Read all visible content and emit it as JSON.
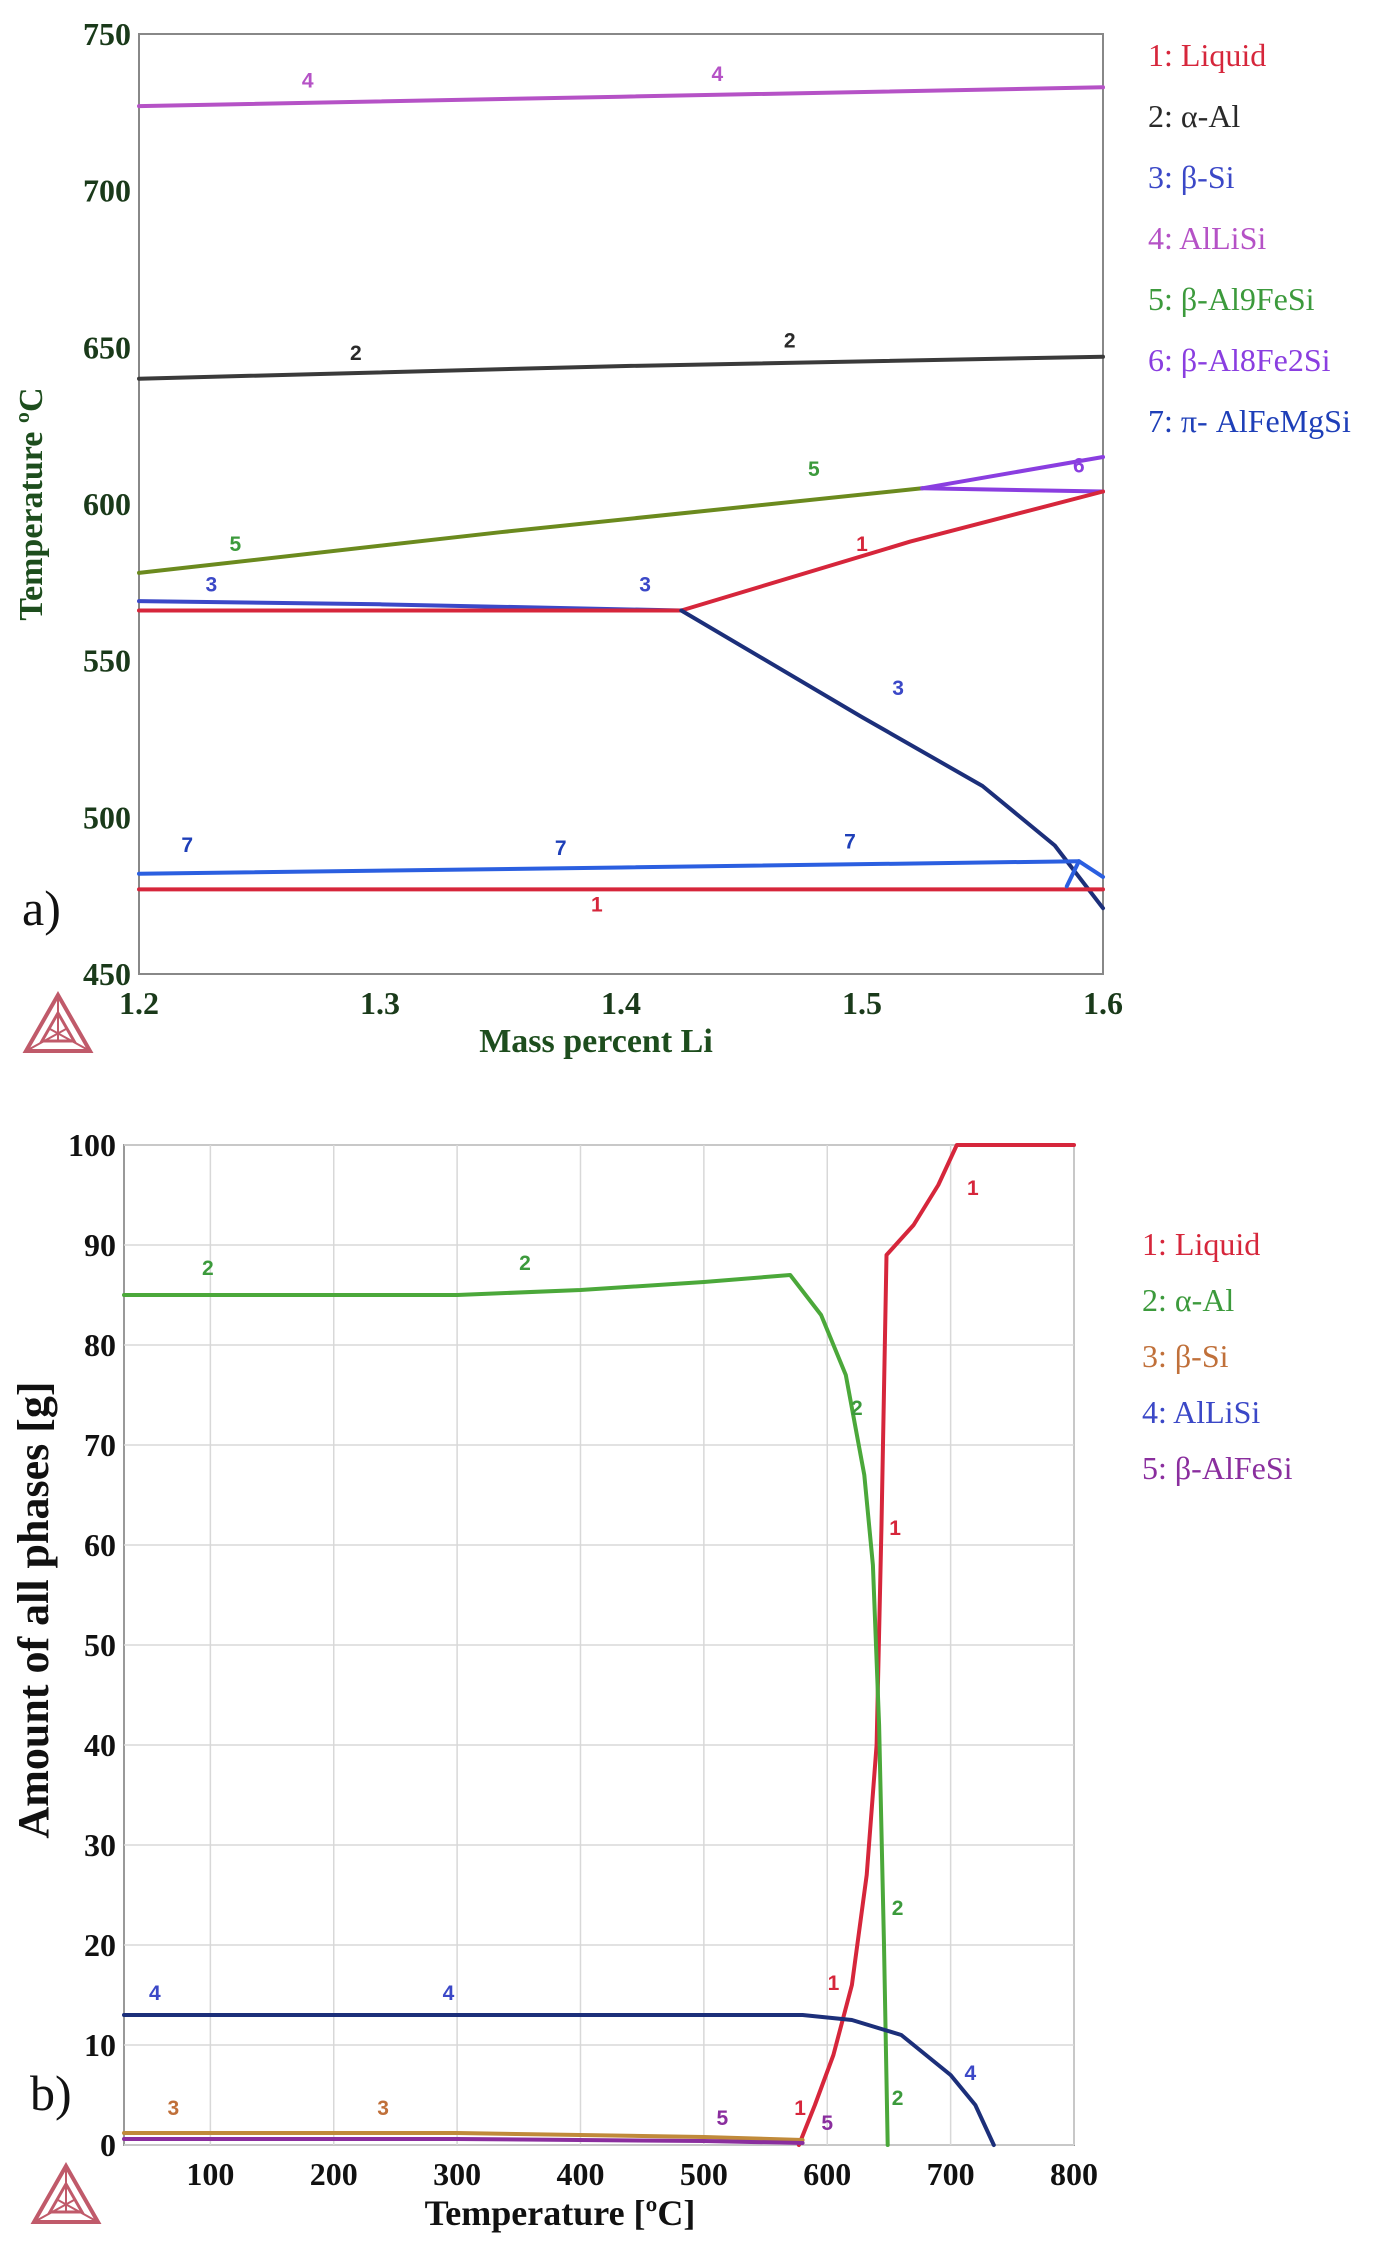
{
  "chart_data": [
    {
      "type": "line",
      "panel_label": "a)",
      "xlabel": "Mass percent Li",
      "ylabel": "Temperature ºC",
      "xlim": [
        1.2,
        1.6
      ],
      "ylim": [
        450,
        750
      ],
      "x_ticks": [
        "1.2",
        "1.3",
        "1.4",
        "1.5",
        "1.6"
      ],
      "y_ticks": [
        "450",
        "500",
        "550",
        "600",
        "650",
        "700",
        "750"
      ],
      "legend": [
        {
          "text": "1: Liquid",
          "color": "#d6263b"
        },
        {
          "text": "2: α-Al",
          "color": "#2a2a2a"
        },
        {
          "text": "3: β-Si",
          "color": "#3b48c7"
        },
        {
          "text": "4: AlLiSi",
          "color": "#b552c6"
        },
        {
          "text": "5: β-Al9FeSi",
          "color": "#3c9a3c"
        },
        {
          "text": "6: β-Al8Fe2Si",
          "color": "#8a3ee0"
        },
        {
          "text": "7: π- AlFeMgSi",
          "color": "#1e3fb8"
        }
      ],
      "series": [
        {
          "name": "4",
          "color": "#b552c6",
          "points": [
            [
              1.2,
              727
            ],
            [
              1.4,
              730
            ],
            [
              1.6,
              733
            ]
          ]
        },
        {
          "name": "2",
          "color": "#3a3a3a",
          "points": [
            [
              1.2,
              640
            ],
            [
              1.4,
              644
            ],
            [
              1.6,
              647
            ]
          ]
        },
        {
          "name": "5",
          "color": "#6b8a1e",
          "points": [
            [
              1.2,
              578
            ],
            [
              1.35,
              591
            ],
            [
              1.525,
              605
            ]
          ]
        },
        {
          "name": "6",
          "color": "#8a3ee0",
          "points": [
            [
              1.525,
              605
            ],
            [
              1.6,
              615
            ]
          ]
        },
        {
          "name": "6",
          "color": "#8a3ee0",
          "points": [
            [
              1.525,
              605
            ],
            [
              1.6,
              604
            ]
          ]
        },
        {
          "name": "1",
          "color": "#d6263b",
          "points": [
            [
              1.425,
              566
            ],
            [
              1.52,
              588
            ],
            [
              1.6,
              604
            ]
          ]
        },
        {
          "name": "3",
          "color": "#3b48c7",
          "points": [
            [
              1.2,
              569
            ],
            [
              1.3,
              568
            ],
            [
              1.425,
              566
            ]
          ]
        },
        {
          "name": "1",
          "color": "#d6263b",
          "points": [
            [
              1.2,
              566
            ],
            [
              1.3,
              566
            ],
            [
              1.425,
              566
            ]
          ]
        },
        {
          "name": "3",
          "color": "#1c2f7a",
          "points": [
            [
              1.425,
              566
            ],
            [
              1.5,
              532
            ],
            [
              1.55,
              510
            ],
            [
              1.58,
              491
            ],
            [
              1.6,
              471
            ]
          ]
        },
        {
          "name": "7",
          "color": "#2b5fe0",
          "points": [
            [
              1.2,
              482
            ],
            [
              1.4,
              484
            ],
            [
              1.59,
              486
            ]
          ]
        },
        {
          "name": "1",
          "color": "#d6263b",
          "points": [
            [
              1.2,
              477
            ],
            [
              1.4,
              477
            ],
            [
              1.6,
              477
            ]
          ]
        },
        {
          "name": "7",
          "color": "#2b5fe0",
          "points": [
            [
              1.585,
              478
            ],
            [
              1.59,
              486
            ],
            [
              1.6,
              481
            ]
          ]
        }
      ],
      "labels": [
        {
          "text": "4",
          "x": 1.27,
          "y": 733,
          "color": "#b552c6"
        },
        {
          "text": "4",
          "x": 1.44,
          "y": 735,
          "color": "#b552c6"
        },
        {
          "text": "2",
          "x": 1.29,
          "y": 646,
          "color": "#2a2a2a"
        },
        {
          "text": "2",
          "x": 1.47,
          "y": 650,
          "color": "#2a2a2a"
        },
        {
          "text": "5",
          "x": 1.24,
          "y": 585,
          "color": "#3c9a3c"
        },
        {
          "text": "5",
          "x": 1.48,
          "y": 609,
          "color": "#3c9a3c"
        },
        {
          "text": "6",
          "x": 1.59,
          "y": 610,
          "color": "#8a3ee0"
        },
        {
          "text": "1",
          "x": 1.5,
          "y": 585,
          "color": "#d6263b"
        },
        {
          "text": "3",
          "x": 1.23,
          "y": 572,
          "color": "#3b48c7"
        },
        {
          "text": "3",
          "x": 1.41,
          "y": 572,
          "color": "#3b48c7"
        },
        {
          "text": "3",
          "x": 1.515,
          "y": 539,
          "color": "#3b48c7"
        },
        {
          "text": "7",
          "x": 1.22,
          "y": 489,
          "color": "#1e3fb8"
        },
        {
          "text": "7",
          "x": 1.375,
          "y": 488,
          "color": "#1e3fb8"
        },
        {
          "text": "7",
          "x": 1.495,
          "y": 490,
          "color": "#1e3fb8"
        },
        {
          "text": "1",
          "x": 1.39,
          "y": 470,
          "color": "#d6263b"
        }
      ]
    },
    {
      "type": "line",
      "panel_label": "b)",
      "xlabel": "Temperature [ºC]",
      "ylabel": "Amount of all phases [g]",
      "xlim": [
        30,
        800
      ],
      "ylim": [
        0,
        100
      ],
      "x_ticks": [
        "100",
        "200",
        "300",
        "400",
        "500",
        "600",
        "700",
        "800"
      ],
      "y_ticks": [
        "0",
        "10",
        "20",
        "30",
        "40",
        "50",
        "60",
        "70",
        "80",
        "90",
        "100"
      ],
      "grid": true,
      "legend": [
        {
          "text": "1: Liquid",
          "color": "#d6263b"
        },
        {
          "text": "2: α-Al",
          "color": "#3c9a3c"
        },
        {
          "text": "3: β-Si",
          "color": "#c0703a"
        },
        {
          "text": "4: AlLiSi",
          "color": "#3b48c7"
        },
        {
          "text": "5: β-AlFeSi",
          "color": "#8a2e9e"
        }
      ],
      "series": [
        {
          "name": "1",
          "color": "#d6263b",
          "points": [
            [
              577,
              0
            ],
            [
              590,
              4
            ],
            [
              605,
              9
            ],
            [
              620,
              16
            ],
            [
              632,
              27
            ],
            [
              640,
              40
            ],
            [
              644,
              62
            ],
            [
              648,
              89
            ],
            [
              670,
              92
            ],
            [
              690,
              96
            ],
            [
              705,
              100
            ],
            [
              800,
              100
            ]
          ]
        },
        {
          "name": "2",
          "color": "#4ba83a",
          "points": [
            [
              30,
              85
            ],
            [
              200,
              85
            ],
            [
              300,
              85
            ],
            [
              400,
              85.5
            ],
            [
              500,
              86.3
            ],
            [
              570,
              87
            ],
            [
              595,
              83
            ],
            [
              615,
              77
            ],
            [
              630,
              67
            ],
            [
              637,
              58
            ],
            [
              642,
              42
            ],
            [
              646,
              20
            ],
            [
              649,
              0
            ]
          ]
        },
        {
          "name": "4",
          "color": "#1c2f7a",
          "points": [
            [
              30,
              13
            ],
            [
              300,
              13
            ],
            [
              500,
              13
            ],
            [
              580,
              13
            ],
            [
              620,
              12.5
            ],
            [
              660,
              11
            ],
            [
              700,
              7
            ],
            [
              720,
              4
            ],
            [
              735,
              0
            ]
          ]
        },
        {
          "name": "3",
          "color": "#c08a3a",
          "points": [
            [
              30,
              1.2
            ],
            [
              300,
              1.2
            ],
            [
              500,
              0.8
            ],
            [
              580,
              0.5
            ]
          ]
        },
        {
          "name": "5",
          "color": "#8a2e9e",
          "points": [
            [
              30,
              0.6
            ],
            [
              300,
              0.6
            ],
            [
              500,
              0.4
            ],
            [
              580,
              0.2
            ]
          ]
        }
      ],
      "labels": [
        {
          "text": "2",
          "x": 98,
          "y": 87,
          "color": "#3c9a3c"
        },
        {
          "text": "2",
          "x": 355,
          "y": 87.5,
          "color": "#3c9a3c"
        },
        {
          "text": "2",
          "x": 624,
          "y": 73,
          "color": "#3c9a3c"
        },
        {
          "text": "2",
          "x": 657,
          "y": 23,
          "color": "#3c9a3c"
        },
        {
          "text": "2",
          "x": 657,
          "y": 4,
          "color": "#3c9a3c"
        },
        {
          "text": "1",
          "x": 718,
          "y": 95,
          "color": "#d6263b"
        },
        {
          "text": "1",
          "x": 655,
          "y": 61,
          "color": "#d6263b"
        },
        {
          "text": "1",
          "x": 605,
          "y": 15.5,
          "color": "#d6263b"
        },
        {
          "text": "1",
          "x": 578,
          "y": 3,
          "color": "#d6263b"
        },
        {
          "text": "4",
          "x": 55,
          "y": 14.5,
          "color": "#3b48c7"
        },
        {
          "text": "4",
          "x": 293,
          "y": 14.5,
          "color": "#3b48c7"
        },
        {
          "text": "4",
          "x": 716,
          "y": 6.5,
          "color": "#3b48c7"
        },
        {
          "text": "3",
          "x": 70,
          "y": 3,
          "color": "#c0703a"
        },
        {
          "text": "3",
          "x": 240,
          "y": 3,
          "color": "#c0703a"
        },
        {
          "text": "5",
          "x": 515,
          "y": 2,
          "color": "#8a2e9e"
        },
        {
          "text": "5",
          "x": 600,
          "y": 1.5,
          "color": "#8a2e9e"
        }
      ]
    }
  ]
}
